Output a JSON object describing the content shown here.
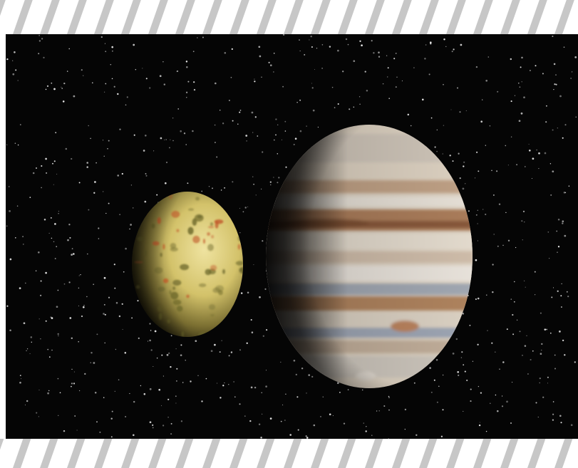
{
  "image": {
    "subject": "jupiter-and-io-in-space",
    "colors": {
      "space": "#050505",
      "stripe": "#c7c7c7",
      "band_background": "#ffffff",
      "io_base": "#d6c46a",
      "io_spots": "#6f6a2c",
      "io_volcanic": "#c25a2a",
      "jupiter_light": "#f1e7d8",
      "jupiter_band_dark": "#b07a55",
      "jupiter_band_blue": "#9aa6b6",
      "star": "#e8e8e8"
    },
    "objects": [
      "io-moon",
      "jupiter-planet",
      "starfield"
    ],
    "decoration": "diagonal-gray-stripe-bands-top-and-bottom"
  }
}
